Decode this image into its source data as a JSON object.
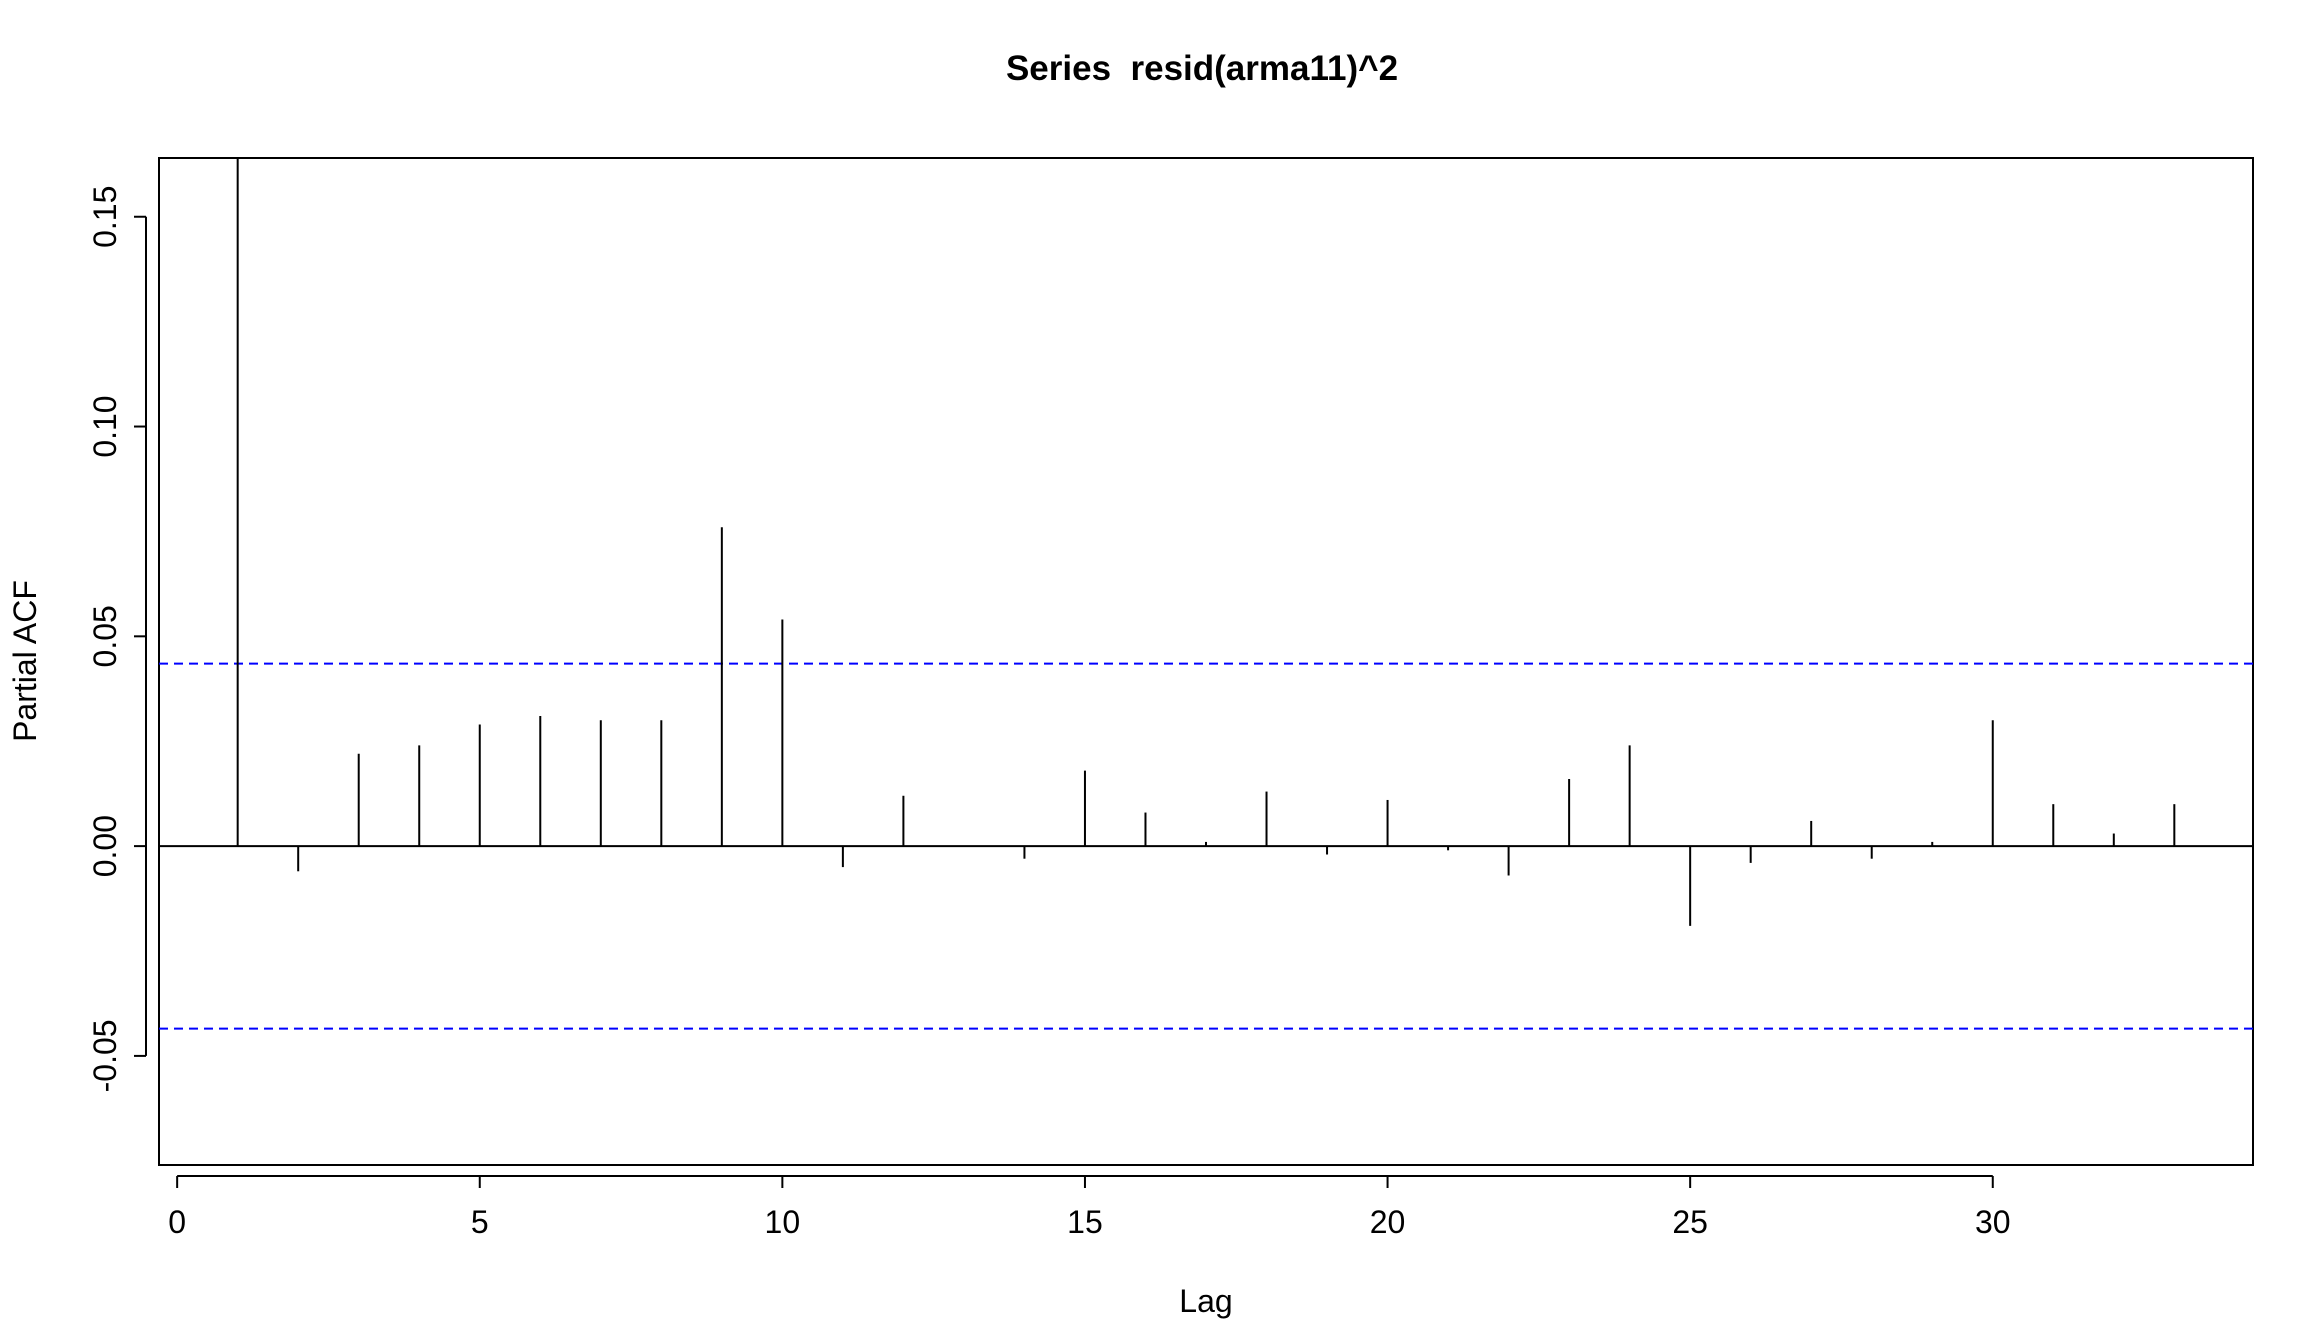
{
  "chart_data": {
    "type": "bar",
    "title": "Series  resid(arma11)^2",
    "xlabel": "Lag",
    "ylabel": "Partial ACF",
    "xlim": [
      -0.3,
      34.3
    ],
    "ylim": [
      -0.076,
      0.164
    ],
    "x_ticks": [
      0,
      5,
      10,
      15,
      20,
      25,
      30
    ],
    "y_ticks": [
      -0.05,
      0.0,
      0.05,
      0.1,
      0.15
    ],
    "y_tick_labels": [
      "-0.05",
      "0.00",
      "0.05",
      "0.10",
      "0.15"
    ],
    "grid": false,
    "zero_line": true,
    "confidence_bound": 0.0435,
    "confidence_color": "#0000ff",
    "lags": [
      1,
      2,
      3,
      4,
      5,
      6,
      7,
      8,
      9,
      10,
      11,
      12,
      13,
      14,
      15,
      16,
      17,
      18,
      19,
      20,
      21,
      22,
      23,
      24,
      25,
      26,
      27,
      28,
      29,
      30,
      31,
      32,
      33
    ],
    "values": [
      0.164,
      -0.006,
      0.022,
      0.024,
      0.029,
      0.031,
      0.03,
      0.03,
      0.076,
      0.054,
      -0.005,
      0.012,
      0.0,
      -0.003,
      0.018,
      0.008,
      0.001,
      0.013,
      -0.002,
      0.011,
      -0.001,
      -0.007,
      0.016,
      0.024,
      -0.019,
      -0.004,
      0.006,
      -0.003,
      0.001,
      0.03,
      0.01,
      0.003,
      0.01
    ]
  }
}
